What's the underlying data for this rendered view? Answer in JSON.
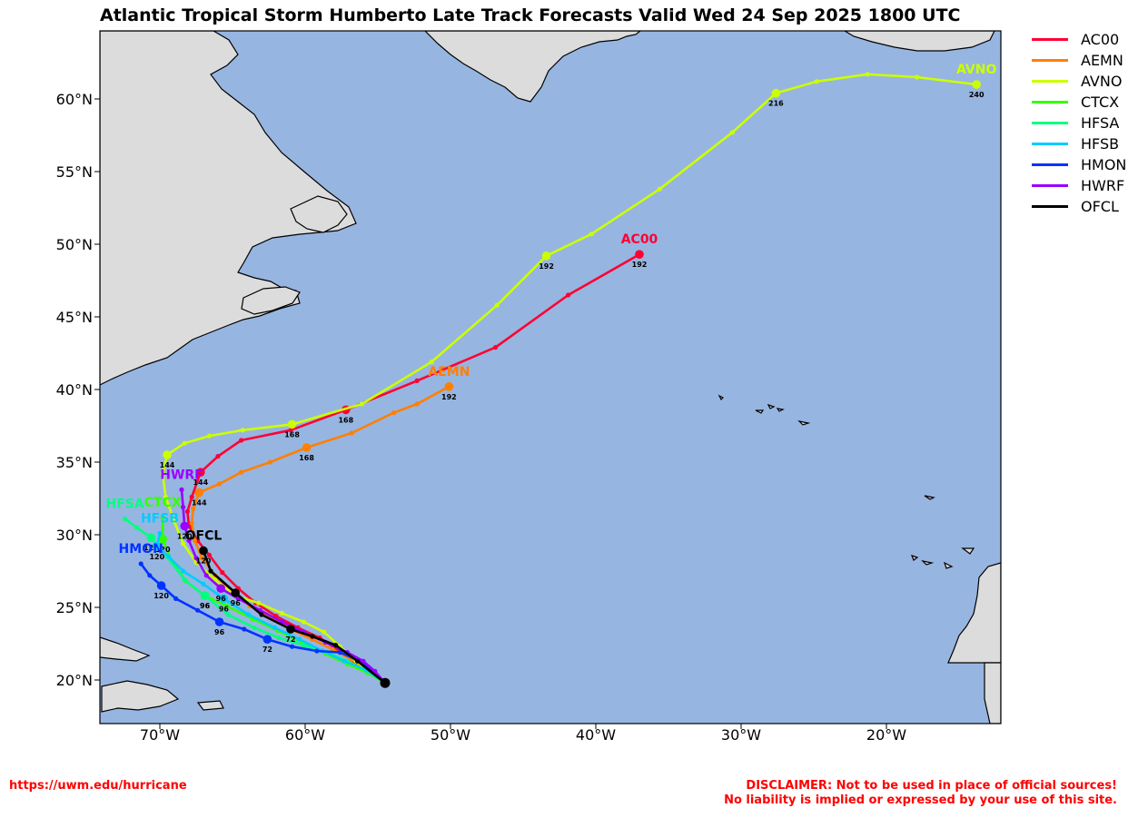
{
  "title": "Atlantic Tropical Storm Humberto Late Track Forecasts Valid Wed 24 Sep 2025 1800 UTC",
  "colors": {
    "ocean": "#97b5e1",
    "land": "#dcdcdc",
    "coast": "#000000"
  },
  "lat_ticks": [
    {
      "value": 20,
      "label": "20°N"
    },
    {
      "value": 25,
      "label": "25°N"
    },
    {
      "value": 30,
      "label": "30°N"
    },
    {
      "value": 35,
      "label": "35°N"
    },
    {
      "value": 40,
      "label": "40°N"
    },
    {
      "value": 45,
      "label": "45°N"
    },
    {
      "value": 50,
      "label": "50°N"
    },
    {
      "value": 55,
      "label": "55°N"
    },
    {
      "value": 60,
      "label": "60°N"
    }
  ],
  "lon_ticks": [
    {
      "value": -70,
      "label": "70°W"
    },
    {
      "value": -60,
      "label": "60°W"
    },
    {
      "value": -50,
      "label": "50°W"
    },
    {
      "value": -40,
      "label": "40°W"
    },
    {
      "value": -30,
      "label": "30°W"
    },
    {
      "value": -20,
      "label": "20°W"
    }
  ],
  "legend": [
    {
      "name": "AC00",
      "color": "#ff0033"
    },
    {
      "name": "AEMN",
      "color": "#ff8000"
    },
    {
      "name": "AVNO",
      "color": "#ccff00"
    },
    {
      "name": "CTCX",
      "color": "#33ff00"
    },
    {
      "name": "HFSA",
      "color": "#00ff80"
    },
    {
      "name": "HFSB",
      "color": "#00ccff"
    },
    {
      "name": "HMON",
      "color": "#0033ff"
    },
    {
      "name": "HWRF",
      "color": "#9900ff"
    },
    {
      "name": "OFCL",
      "color": "#000000"
    }
  ],
  "tracks": [
    {
      "model": "AC00",
      "color": "#ff0033",
      "label": "AC00",
      "points": [
        [
          -54.5,
          19.8
        ],
        [
          -55.6,
          20.5
        ],
        [
          -56.7,
          21.3
        ],
        [
          -57.8,
          22.1
        ],
        [
          -59.0,
          22.9
        ],
        [
          -60.5,
          23.6
        ],
        [
          -62.0,
          24.4
        ],
        [
          -63.4,
          25.3
        ],
        [
          -64.6,
          26.3
        ],
        [
          -65.7,
          27.4
        ],
        [
          -66.6,
          28.6
        ],
        [
          -67.4,
          29.6
        ],
        [
          -68.0,
          30.6
        ],
        [
          -68.1,
          31.6
        ],
        [
          -67.8,
          32.6
        ],
        [
          -67.2,
          34.3
        ],
        [
          -66.0,
          35.4
        ],
        [
          -64.4,
          36.5
        ],
        [
          -61.0,
          37.2
        ],
        [
          -57.2,
          38.6
        ],
        [
          -52.3,
          40.6
        ],
        [
          -46.9,
          42.9
        ],
        [
          -41.9,
          46.5
        ],
        [
          -37.0,
          49.3
        ]
      ],
      "marks": [
        {
          "h": "144",
          "i": 15
        },
        {
          "h": "168",
          "i": 19
        },
        {
          "h": "192",
          "i": 23
        }
      ]
    },
    {
      "model": "AEMN",
      "color": "#ff8000",
      "label": "AEMN",
      "points": [
        [
          -54.5,
          19.8
        ],
        [
          -55.6,
          20.6
        ],
        [
          -56.8,
          21.4
        ],
        [
          -58.1,
          22.1
        ],
        [
          -59.5,
          22.8
        ],
        [
          -61.0,
          23.5
        ],
        [
          -62.4,
          24.3
        ],
        [
          -63.8,
          25.1
        ],
        [
          -65.1,
          26.1
        ],
        [
          -66.2,
          27.2
        ],
        [
          -67.1,
          28.4
        ],
        [
          -67.6,
          29.6
        ],
        [
          -67.8,
          30.8
        ],
        [
          -67.7,
          31.8
        ],
        [
          -67.3,
          32.9
        ],
        [
          -65.9,
          33.5
        ],
        [
          -64.4,
          34.3
        ],
        [
          -62.4,
          35.0
        ],
        [
          -59.9,
          36.0
        ],
        [
          -56.8,
          37.0
        ],
        [
          -53.9,
          38.4
        ],
        [
          -52.3,
          39.0
        ],
        [
          -50.1,
          40.2
        ]
      ],
      "marks": [
        {
          "h": "144",
          "i": 14
        },
        {
          "h": "168",
          "i": 18
        },
        {
          "h": "192",
          "i": 22
        }
      ]
    },
    {
      "model": "AVNO",
      "color": "#ccff00",
      "label": "AVNO",
      "points": [
        [
          -54.5,
          19.8
        ],
        [
          -55.5,
          20.5
        ],
        [
          -56.5,
          21.3
        ],
        [
          -57.6,
          22.3
        ],
        [
          -58.7,
          23.3
        ],
        [
          -60.1,
          24.0
        ],
        [
          -61.6,
          24.6
        ],
        [
          -63.2,
          25.3
        ],
        [
          -64.8,
          25.8
        ],
        [
          -66.2,
          26.9
        ],
        [
          -67.5,
          28.1
        ],
        [
          -68.4,
          29.4
        ],
        [
          -69.0,
          30.9
        ],
        [
          -69.6,
          32.6
        ],
        [
          -69.8,
          34.2
        ],
        [
          -69.5,
          35.5
        ],
        [
          -68.3,
          36.3
        ],
        [
          -66.6,
          36.8
        ],
        [
          -64.3,
          37.2
        ],
        [
          -60.9,
          37.6
        ],
        [
          -56.1,
          39.0
        ],
        [
          -51.3,
          41.9
        ],
        [
          -46.8,
          45.8
        ],
        [
          -43.4,
          49.2
        ],
        [
          -40.3,
          50.7
        ],
        [
          -35.6,
          53.8
        ],
        [
          -30.6,
          57.7
        ],
        [
          -27.6,
          60.4
        ],
        [
          -24.8,
          61.2
        ],
        [
          -21.3,
          61.7
        ],
        [
          -17.9,
          61.5
        ],
        [
          -13.8,
          61.0
        ]
      ],
      "marks": [
        {
          "h": "144",
          "i": 15
        },
        {
          "h": "168",
          "i": 19
        },
        {
          "h": "192",
          "i": 23
        },
        {
          "h": "216",
          "i": 27
        },
        {
          "h": "240",
          "i": 31
        }
      ]
    },
    {
      "model": "CTCX",
      "color": "#33ff00",
      "label": "CTCX",
      "points": [
        [
          -54.5,
          19.8
        ],
        [
          -55.7,
          20.5
        ],
        [
          -57.1,
          21.1
        ],
        [
          -58.6,
          21.8
        ],
        [
          -60.2,
          22.6
        ],
        [
          -61.9,
          23.4
        ],
        [
          -63.6,
          24.2
        ],
        [
          -65.4,
          25.1
        ],
        [
          -66.9,
          25.8
        ],
        [
          -68.2,
          26.8
        ],
        [
          -69.2,
          28.2
        ],
        [
          -69.8,
          29.7
        ],
        [
          -69.8,
          31.2
        ]
      ],
      "marks": [
        {
          "h": "96",
          "i": 8
        },
        {
          "h": "120",
          "i": 11
        }
      ]
    },
    {
      "model": "HFSA",
      "color": "#00ff80",
      "label": "HFSA",
      "points": [
        [
          -54.5,
          19.8
        ],
        [
          -55.7,
          20.6
        ],
        [
          -57.1,
          21.3
        ],
        [
          -58.5,
          21.9
        ],
        [
          -60.1,
          22.4
        ],
        [
          -61.8,
          22.9
        ],
        [
          -63.5,
          23.6
        ],
        [
          -65.3,
          24.5
        ],
        [
          -66.9,
          25.8
        ],
        [
          -68.3,
          26.9
        ],
        [
          -69.5,
          28.5
        ],
        [
          -70.6,
          29.8
        ],
        [
          -71.6,
          30.5
        ],
        [
          -72.4,
          31.1
        ]
      ],
      "marks": [
        {
          "h": "96",
          "i": 8
        },
        {
          "h": "120",
          "i": 11
        }
      ]
    },
    {
      "model": "HFSB",
      "color": "#00ccff",
      "label": "HFSB",
      "points": [
        [
          -54.5,
          19.8
        ],
        [
          -55.8,
          20.7
        ],
        [
          -57.3,
          21.3
        ],
        [
          -58.8,
          22.0
        ],
        [
          -60.4,
          22.8
        ],
        [
          -62.1,
          23.6
        ],
        [
          -63.9,
          24.5
        ],
        [
          -65.6,
          25.6
        ],
        [
          -67.0,
          26.6
        ],
        [
          -68.4,
          27.5
        ],
        [
          -69.4,
          28.5
        ],
        [
          -70.2,
          29.2
        ],
        [
          -70.0,
          30.1
        ]
      ],
      "marks": [
        {
          "h": "96",
          "i": 7
        },
        {
          "h": "120",
          "i": 11
        }
      ]
    },
    {
      "model": "HMON",
      "color": "#0033ff",
      "label": "HMON",
      "points": [
        [
          -54.5,
          19.8
        ],
        [
          -56.0,
          21.2
        ],
        [
          -57.6,
          21.9
        ],
        [
          -59.2,
          22.0
        ],
        [
          -60.9,
          22.3
        ],
        [
          -62.6,
          22.8
        ],
        [
          -64.2,
          23.5
        ],
        [
          -65.9,
          24.0
        ],
        [
          -67.4,
          24.8
        ],
        [
          -68.9,
          25.6
        ],
        [
          -69.9,
          26.5
        ],
        [
          -70.7,
          27.2
        ],
        [
          -71.3,
          28.0
        ]
      ],
      "marks": [
        {
          "h": "72",
          "i": 5
        },
        {
          "h": "96",
          "i": 7
        },
        {
          "h": "120",
          "i": 10
        }
      ]
    },
    {
      "model": "HWRF",
      "color": "#9900ff",
      "label": "HWRF",
      "points": [
        [
          -54.5,
          19.8
        ],
        [
          -55.2,
          20.6
        ],
        [
          -56.0,
          21.3
        ],
        [
          -57.1,
          21.9
        ],
        [
          -58.6,
          22.6
        ],
        [
          -60.1,
          23.3
        ],
        [
          -61.6,
          24.0
        ],
        [
          -63.1,
          24.8
        ],
        [
          -64.6,
          25.6
        ],
        [
          -65.8,
          26.3
        ],
        [
          -66.8,
          27.2
        ],
        [
          -67.5,
          28.4
        ],
        [
          -68.0,
          29.6
        ],
        [
          -68.3,
          30.6
        ],
        [
          -68.4,
          31.9
        ],
        [
          -68.5,
          33.1
        ]
      ],
      "marks": [
        {
          "h": "96",
          "i": 9
        },
        {
          "h": "120",
          "i": 13
        }
      ]
    },
    {
      "model": "OFCL",
      "color": "#000000",
      "label": "OFCL",
      "points": [
        [
          -54.5,
          19.8
        ],
        [
          -56.4,
          21.3
        ],
        [
          -57.9,
          22.4
        ],
        [
          -59.5,
          23.0
        ],
        [
          -61.0,
          23.5
        ],
        [
          -63.0,
          24.5
        ],
        [
          -64.8,
          26.0
        ],
        [
          -66.5,
          27.5
        ],
        [
          -67.0,
          28.9
        ]
      ],
      "marks": [
        {
          "h": "72",
          "i": 4
        },
        {
          "h": "96",
          "i": 6
        },
        {
          "h": "120",
          "i": 8
        }
      ]
    }
  ],
  "footer": {
    "url": "https://uwm.edu/hurricane",
    "disclaimer_line1": "DISCLAIMER: Not to be used in place of official sources!",
    "disclaimer_line2": "No liability is implied or expressed by your use of this site."
  }
}
